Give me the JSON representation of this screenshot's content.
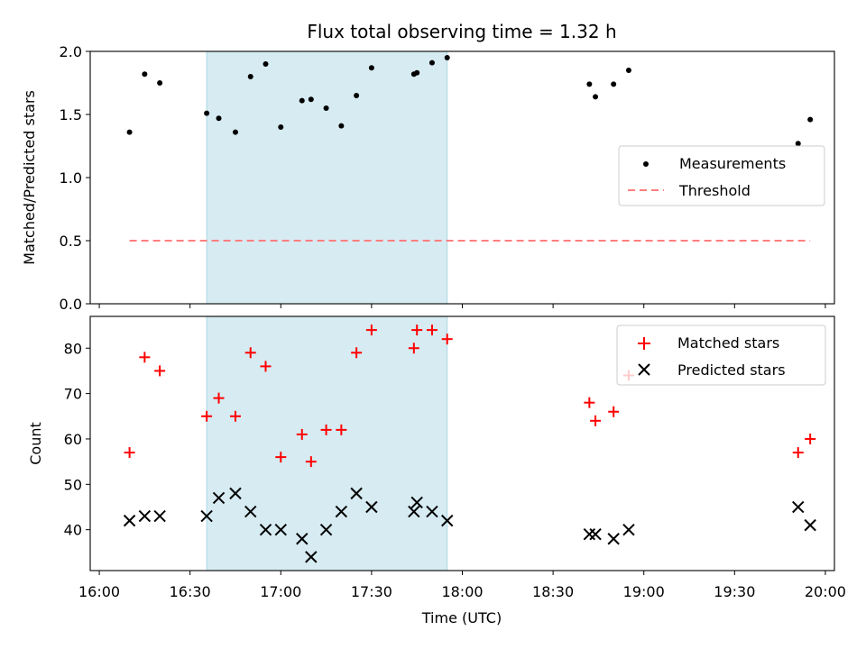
{
  "chart_data": {
    "type": "scatter",
    "title": "Flux total observing time = 1.32 h",
    "xlabel": "Time (UTC)",
    "x_unit": "minutes since 16:00 UTC",
    "xlim": [
      -3,
      243
    ],
    "x_ticks": [
      {
        "value": 0,
        "label": "16:00"
      },
      {
        "value": 30,
        "label": "16:30"
      },
      {
        "value": 60,
        "label": "17:00"
      },
      {
        "value": 90,
        "label": "17:30"
      },
      {
        "value": 120,
        "label": "18:00"
      },
      {
        "value": 150,
        "label": "18:30"
      },
      {
        "value": 180,
        "label": "19:00"
      },
      {
        "value": 210,
        "label": "19:30"
      },
      {
        "value": 240,
        "label": "20:00"
      }
    ],
    "shaded_span": {
      "x0": 35.5,
      "x1": 115,
      "color": "#add8e6"
    },
    "panels": [
      {
        "ylabel": "Matched/Predicted stars",
        "ylim": [
          0,
          2.0
        ],
        "y_ticks": [
          {
            "value": 0,
            "label": "0.0"
          },
          {
            "value": 0.5,
            "label": "0.5"
          },
          {
            "value": 1.0,
            "label": "1.0"
          },
          {
            "value": 1.5,
            "label": "1.5"
          },
          {
            "value": 2.0,
            "label": "2.0"
          }
        ],
        "series": [
          {
            "name": "Measurements",
            "marker": "dot",
            "color": "#000000",
            "x": [
              10,
              15,
              20,
              35.5,
              39.5,
              45,
              50,
              55,
              60,
              67,
              70,
              75,
              80,
              85,
              90,
              104,
              105,
              110,
              115,
              162,
              164,
              170,
              175,
              231,
              235
            ],
            "y": [
              1.36,
              1.82,
              1.75,
              1.51,
              1.47,
              1.36,
              1.8,
              1.9,
              1.4,
              1.61,
              1.62,
              1.55,
              1.41,
              1.65,
              1.87,
              1.82,
              1.83,
              1.91,
              1.95,
              1.74,
              1.64,
              1.74,
              1.85,
              1.27,
              1.46
            ]
          },
          {
            "name": "Threshold",
            "marker": "dashed-line",
            "color": "#ff7f7f",
            "x": [
              10,
              235
            ],
            "y": [
              0.5,
              0.5
            ]
          }
        ],
        "legend": [
          "Measurements",
          "Threshold"
        ],
        "legend_position": "center-right"
      },
      {
        "ylabel": "Count",
        "ylim": [
          31,
          87
        ],
        "y_ticks": [
          {
            "value": 40,
            "label": "40"
          },
          {
            "value": 50,
            "label": "50"
          },
          {
            "value": 60,
            "label": "60"
          },
          {
            "value": 70,
            "label": "70"
          },
          {
            "value": 80,
            "label": "80"
          }
        ],
        "series": [
          {
            "name": "Matched stars",
            "marker": "plus",
            "color": "#ff0000",
            "x": [
              10,
              15,
              20,
              35.5,
              39.5,
              45,
              50,
              55,
              60,
              67,
              70,
              75,
              80,
              85,
              90,
              104,
              105,
              110,
              115,
              162,
              164,
              170,
              175,
              231,
              235
            ],
            "y": [
              57,
              78,
              75,
              65,
              69,
              65,
              79,
              76,
              56,
              61,
              55,
              62,
              62,
              79,
              84,
              80,
              84,
              84,
              82,
              68,
              64,
              66,
              74,
              57,
              60
            ]
          },
          {
            "name": "Predicted stars",
            "marker": "x",
            "color": "#000000",
            "x": [
              10,
              15,
              20,
              35.5,
              39.5,
              45,
              50,
              55,
              60,
              67,
              70,
              75,
              80,
              85,
              90,
              104,
              105,
              110,
              115,
              162,
              164,
              170,
              175,
              231,
              235
            ],
            "y": [
              42,
              43,
              43,
              43,
              47,
              48,
              44,
              40,
              40,
              38,
              34,
              40,
              44,
              48,
              45,
              44,
              46,
              44,
              42,
              39,
              39,
              38,
              40,
              45,
              41
            ]
          }
        ],
        "legend": [
          "Matched stars",
          "Predicted stars"
        ],
        "legend_position": "top-right"
      }
    ]
  }
}
